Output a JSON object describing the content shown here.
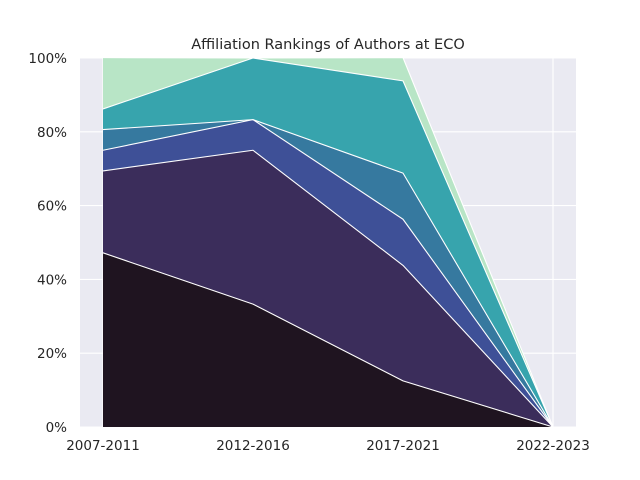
{
  "chart_data": {
    "type": "area",
    "stacked": true,
    "normalized": true,
    "title": "Affiliation Rankings of Authors at ECO",
    "xlabel": "",
    "ylabel": "",
    "categories": [
      "2007-2011",
      "2012-2016",
      "2017-2021",
      "2022-2023"
    ],
    "y_tick_labels": [
      "0%",
      "20%",
      "40%",
      "60%",
      "80%",
      "100%"
    ],
    "ylim": [
      0,
      100
    ],
    "grid": true,
    "legend": "none",
    "series": [
      {
        "color": "#1f1420",
        "values": [
          47.2,
          33.3,
          12.5,
          0
        ]
      },
      {
        "color": "#3b2d5b",
        "values": [
          22.2,
          41.7,
          31.3,
          0
        ]
      },
      {
        "color": "#3e5097",
        "values": [
          5.6,
          8.3,
          12.5,
          0
        ]
      },
      {
        "color": "#36799f",
        "values": [
          5.6,
          0,
          12.5,
          0
        ]
      },
      {
        "color": "#37a4ad",
        "values": [
          5.6,
          16.7,
          25.0,
          0
        ]
      },
      {
        "color": "#b8e5c6",
        "values": [
          13.9,
          0,
          6.3,
          0
        ]
      }
    ],
    "colors": {
      "plot_background": "#eaeaf2",
      "grid": "#ffffff",
      "edge": "#ffffff",
      "text": "#262626"
    }
  }
}
